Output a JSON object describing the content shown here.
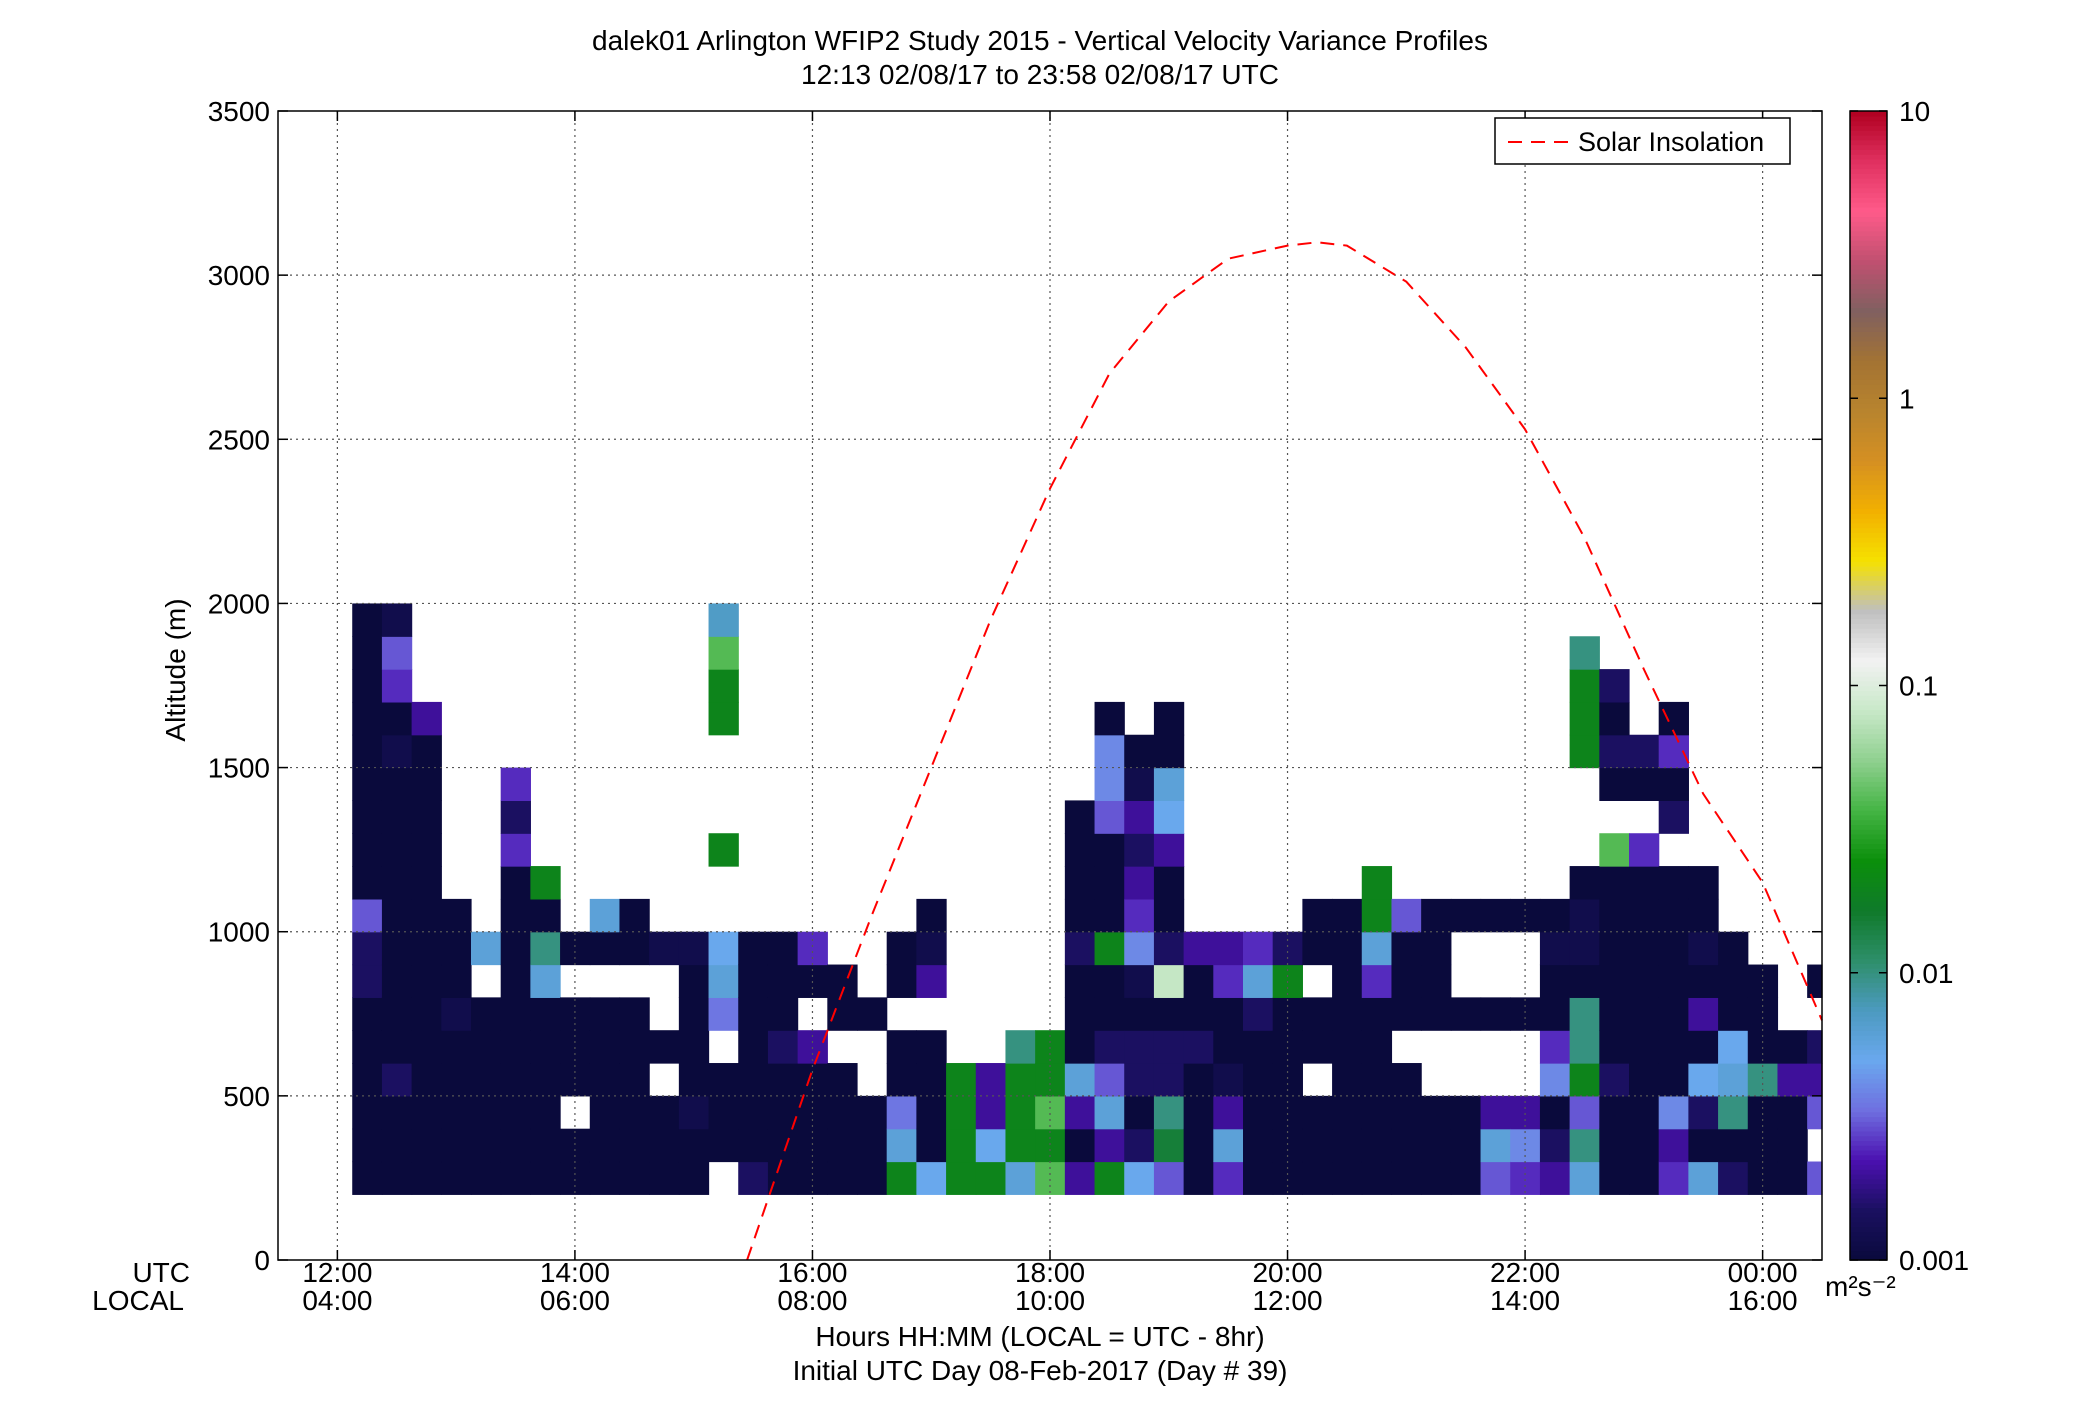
{
  "chart_data": {
    "type": "heatmap",
    "title": "dalek01 Arlington WFIP2 Study 2015 - Vertical Velocity Variance Profiles",
    "subtitle": "12:13 02/08/17 to 23:58 02/08/17  UTC",
    "ylabel": "Altitude (m)",
    "xlabel": "Hours HH:MM  (LOCAL = UTC - 8hr)",
    "xlabel2": "Initial UTC Day 08-Feb-2017 (Day # 39)",
    "row_label_utc": "UTC",
    "row_label_local": "LOCAL",
    "xlim": [
      11.5,
      24.5
    ],
    "ylim": [
      0,
      3500
    ],
    "grid": true,
    "x_ticks_utc": [
      {
        "x": 12,
        "label": "12:00"
      },
      {
        "x": 14,
        "label": "14:00"
      },
      {
        "x": 16,
        "label": "16:00"
      },
      {
        "x": 18,
        "label": "18:00"
      },
      {
        "x": 20,
        "label": "20:00"
      },
      {
        "x": 22,
        "label": "22:00"
      },
      {
        "x": 24,
        "label": "00:00"
      }
    ],
    "x_ticks_local": [
      "04:00",
      "06:00",
      "08:00",
      "10:00",
      "12:00",
      "14:00",
      "16:00"
    ],
    "y_ticks": [
      {
        "y": 0,
        "label": "0"
      },
      {
        "y": 500,
        "label": "500"
      },
      {
        "y": 1000,
        "label": "1000"
      },
      {
        "y": 1500,
        "label": "1500"
      },
      {
        "y": 2000,
        "label": "2000"
      },
      {
        "y": 2500,
        "label": "2500"
      },
      {
        "y": 3000,
        "label": "3000"
      },
      {
        "y": 3500,
        "label": "3500"
      }
    ],
    "legend": {
      "label": "Solar Insolation",
      "color": "#ff0000",
      "position": "top-right"
    },
    "solar_insolation": {
      "x": [
        15.45,
        16.0,
        16.5,
        17.0,
        17.5,
        18.0,
        18.5,
        19.0,
        19.5,
        20.0,
        20.25,
        20.5,
        21.0,
        21.5,
        22.0,
        22.5,
        23.0,
        23.5,
        24.0,
        24.5
      ],
      "y": [
        0,
        580,
        1050,
        1500,
        1950,
        2350,
        2700,
        2920,
        3050,
        3090,
        3100,
        3090,
        2980,
        2780,
        2530,
        2200,
        1800,
        1420,
        1150,
        730
      ]
    },
    "colorbar": {
      "scale": "log",
      "range": [
        0.001,
        10
      ],
      "tick_labels": [
        "10",
        "1",
        "0.1",
        "0.01",
        "0.001"
      ],
      "unit": "m²s⁻²",
      "stops": [
        "#0a0a3c",
        "#1a1060",
        "#4b10b0",
        "#6f6fe0",
        "#6aa8ee",
        "#4c9ac0",
        "#2e8f6a",
        "#0f7a2a",
        "#0b8f0b",
        "#44b444",
        "#8fd08f",
        "#c8e8c8",
        "#f2f2f2",
        "#bfbfbf",
        "#f5e100",
        "#f2b000",
        "#d59022",
        "#b8842e",
        "#a37333",
        "#806060",
        "#c05070",
        "#ff5b8a",
        "#e03060",
        "#b00020"
      ]
    },
    "bin_width_hours": 0.25,
    "bin_height_m": 100,
    "columns": [
      {
        "x": 12.25,
        "bottom": 200,
        "values": [
          0.001,
          0.001,
          0.001,
          0.001,
          0.001,
          0.001,
          0.0015,
          0.0015,
          0.003,
          0.001,
          0.001,
          0.001,
          0.001,
          0.001,
          0.001,
          0.001,
          0.001,
          0.001
        ]
      },
      {
        "x": 12.5,
        "bottom": 200,
        "values": [
          0.001,
          0.001,
          0.001,
          0.0015,
          0.001,
          0.001,
          0.001,
          0.001,
          0.001,
          0.001,
          0.001,
          0.001,
          0.001,
          0.0012,
          0.001,
          0.0025,
          0.003,
          0.0012
        ]
      },
      {
        "x": 12.75,
        "bottom": 200,
        "values": [
          0.001,
          0.001,
          0.001,
          0.001,
          0.001,
          0.001,
          0.001,
          0.001,
          0.001,
          0.001,
          0.001,
          0.001,
          0.001,
          0.001,
          0.002
        ]
      },
      {
        "x": 13.0,
        "bottom": 200,
        "values": [
          0.001,
          0.001,
          0.001,
          0.001,
          0.001,
          0.0012,
          0.001,
          0.001,
          0.001
        ]
      },
      {
        "x": 13.25,
        "bottom": 200,
        "values": [
          0.001,
          0.001,
          0.001,
          0.001,
          0.001,
          0.001,
          null,
          0.006
        ]
      },
      {
        "x": 13.5,
        "bottom": 200,
        "values": [
          0.001,
          0.001,
          0.001,
          0.001,
          0.001,
          0.001,
          0.001,
          0.001,
          0.001,
          0.001,
          0.0025,
          0.0015,
          0.0025
        ]
      },
      {
        "x": 13.75,
        "bottom": 200,
        "values": [
          0.001,
          0.001,
          0.001,
          0.001,
          0.001,
          0.001,
          0.006,
          0.01,
          0.001,
          0.02
        ]
      },
      {
        "x": 14.0,
        "bottom": 200,
        "values": [
          0.001,
          0.001,
          null,
          0.001,
          0.001,
          0.001,
          null,
          0.001
        ]
      },
      {
        "x": 14.25,
        "bottom": 200,
        "values": [
          0.001,
          0.001,
          0.001,
          0.001,
          0.001,
          0.001,
          null,
          0.001,
          0.006
        ]
      },
      {
        "x": 14.5,
        "bottom": 200,
        "values": [
          0.001,
          0.001,
          0.001,
          0.001,
          0.001,
          0.001,
          null,
          0.001,
          0.001
        ]
      },
      {
        "x": 14.75,
        "bottom": 200,
        "values": [
          0.001,
          0.001,
          0.001,
          null,
          0.001,
          null,
          null,
          0.0012
        ]
      },
      {
        "x": 15.0,
        "bottom": 200,
        "values": [
          0.001,
          0.001,
          0.0012,
          0.001,
          0.001,
          0.001,
          0.001,
          0.0012
        ]
      },
      {
        "x": 15.25,
        "bottom": 200,
        "values": [
          null,
          0.001,
          0.001,
          0.001,
          null,
          0.0035,
          0.006,
          0.005,
          null,
          null,
          0.02,
          null,
          null,
          null,
          0.02,
          0.02,
          0.04,
          0.007
        ]
      },
      {
        "x": 15.5,
        "bottom": 200,
        "values": [
          0.0015,
          0.001,
          0.001,
          0.001,
          0.001,
          0.001,
          0.001,
          0.001
        ]
      },
      {
        "x": 15.75,
        "bottom": 200,
        "values": [
          0.001,
          0.001,
          0.001,
          0.001,
          0.0015,
          0.001,
          0.001,
          0.001
        ]
      },
      {
        "x": 16.0,
        "bottom": 200,
        "values": [
          0.001,
          0.001,
          0.001,
          0.001,
          0.002,
          null,
          0.001,
          0.0025
        ]
      },
      {
        "x": 16.25,
        "bottom": 200,
        "values": [
          0.001,
          0.001,
          0.001,
          0.001,
          null,
          0.001,
          0.001
        ]
      },
      {
        "x": 16.5,
        "bottom": 200,
        "values": [
          0.001,
          0.001,
          0.001,
          null,
          null,
          0.001
        ]
      },
      {
        "x": 16.75,
        "bottom": 200,
        "values": [
          0.02,
          0.006,
          0.0035,
          0.001,
          0.001,
          null,
          0.001,
          0.001
        ]
      },
      {
        "x": 17.0,
        "bottom": 200,
        "values": [
          0.005,
          0.001,
          0.001,
          0.001,
          0.001,
          null,
          0.002,
          0.0012,
          0.001
        ]
      },
      {
        "x": 17.25,
        "bottom": 200,
        "values": [
          0.02,
          0.02,
          0.02,
          0.02
        ]
      },
      {
        "x": 17.5,
        "bottom": 200,
        "values": [
          0.02,
          0.005,
          0.002,
          0.002
        ]
      },
      {
        "x": 17.75,
        "bottom": 200,
        "values": [
          0.006,
          0.02,
          0.02,
          0.02,
          0.01
        ]
      },
      {
        "x": 18.0,
        "bottom": 200,
        "values": [
          0.04,
          0.02,
          0.04,
          0.02,
          0.02
        ]
      },
      {
        "x": 18.25,
        "bottom": 200,
        "values": [
          0.002,
          0.001,
          0.002,
          0.006,
          0.001,
          0.001,
          0.001,
          0.0015,
          0.001,
          0.001,
          0.001,
          0.001
        ]
      },
      {
        "x": 18.5,
        "bottom": 200,
        "values": [
          0.02,
          0.002,
          0.006,
          0.003,
          0.0015,
          0.001,
          0.001,
          0.02,
          0.001,
          0.001,
          0.001,
          0.003,
          0.004,
          0.004,
          0.001
        ]
      },
      {
        "x": 18.75,
        "bottom": 200,
        "values": [
          0.005,
          0.0015,
          0.001,
          0.0015,
          0.0015,
          0.001,
          0.0012,
          0.004,
          0.0025,
          0.002,
          0.0015,
          0.002,
          0.0012,
          0.001
        ]
      },
      {
        "x": 19.0,
        "bottom": 200,
        "values": [
          0.003,
          0.015,
          0.01,
          0.0015,
          0.0015,
          0.001,
          0.08,
          0.0015,
          0.001,
          0.001,
          0.002,
          0.005,
          0.006,
          0.001,
          0.001
        ]
      },
      {
        "x": 19.25,
        "bottom": 200,
        "values": [
          0.001,
          0.001,
          0.001,
          0.001,
          0.0015,
          0.001,
          0.001,
          0.002
        ]
      },
      {
        "x": 19.5,
        "bottom": 200,
        "values": [
          0.0025,
          0.006,
          0.002,
          0.0012,
          0.001,
          0.001,
          0.0025,
          0.002
        ]
      },
      {
        "x": 19.75,
        "bottom": 200,
        "values": [
          0.001,
          0.001,
          0.001,
          0.001,
          0.001,
          0.0015,
          0.006,
          0.0025
        ]
      },
      {
        "x": 20.0,
        "bottom": 200,
        "values": [
          0.001,
          0.001,
          0.001,
          0.001,
          0.001,
          0.001,
          0.02,
          0.0015
        ]
      },
      {
        "x": 20.25,
        "bottom": 200,
        "values": [
          0.001,
          0.001,
          0.001,
          null,
          0.001,
          0.001,
          null,
          0.001,
          0.001
        ]
      },
      {
        "x": 20.5,
        "bottom": 200,
        "values": [
          0.001,
          0.001,
          0.001,
          0.001,
          0.001,
          0.001,
          0.001,
          0.001,
          0.001
        ]
      },
      {
        "x": 20.75,
        "bottom": 200,
        "values": [
          0.001,
          0.001,
          0.001,
          0.001,
          0.001,
          0.001,
          0.0025,
          0.006,
          0.02,
          0.02
        ]
      },
      {
        "x": 21.0,
        "bottom": 200,
        "values": [
          0.001,
          0.001,
          0.001,
          0.001,
          null,
          0.001,
          0.001,
          0.001,
          0.003
        ]
      },
      {
        "x": 21.25,
        "bottom": 200,
        "values": [
          0.001,
          0.001,
          0.001,
          null,
          null,
          0.001,
          0.001,
          0.001,
          0.001
        ]
      },
      {
        "x": 21.5,
        "bottom": 200,
        "values": [
          0.001,
          0.001,
          0.001,
          null,
          null,
          0.001,
          null,
          null,
          0.001
        ]
      },
      {
        "x": 21.75,
        "bottom": 200,
        "values": [
          0.003,
          0.006,
          0.002,
          null,
          null,
          0.001,
          null,
          null,
          0.001
        ]
      },
      {
        "x": 22.0,
        "bottom": 200,
        "values": [
          0.0025,
          0.004,
          0.002,
          null,
          null,
          0.001,
          null,
          null,
          0.001
        ]
      },
      {
        "x": 22.25,
        "bottom": 200,
        "values": [
          0.002,
          0.0015,
          0.001,
          0.004,
          0.0025,
          0.001,
          0.001,
          0.0012,
          0.001
        ]
      },
      {
        "x": 22.5,
        "bottom": 200,
        "values": [
          0.006,
          0.01,
          0.003,
          0.02,
          0.01,
          0.01,
          0.001,
          0.0012,
          0.0012,
          0.001,
          null,
          null,
          null,
          0.02,
          0.02,
          0.02,
          0.01
        ]
      },
      {
        "x": 22.75,
        "bottom": 200,
        "values": [
          0.001,
          0.001,
          0.001,
          0.0015,
          0.001,
          0.001,
          0.001,
          0.001,
          0.001,
          0.001,
          0.04,
          null,
          0.001,
          0.0015,
          0.001,
          0.0015
        ]
      },
      {
        "x": 23.0,
        "bottom": 200,
        "values": [
          0.001,
          0.001,
          0.001,
          0.001,
          0.001,
          0.001,
          0.001,
          0.001,
          0.001,
          0.001,
          0.0025,
          null,
          0.001,
          0.0015
        ]
      },
      {
        "x": 23.25,
        "bottom": 200,
        "values": [
          0.0025,
          0.002,
          0.004,
          0.001,
          0.001,
          0.001,
          0.001,
          0.001,
          0.001,
          0.001,
          null,
          0.0015,
          0.001,
          0.0025,
          0.001
        ]
      },
      {
        "x": 23.5,
        "bottom": 200,
        "values": [
          0.006,
          0.001,
          0.0015,
          0.005,
          0.001,
          0.002,
          0.001,
          0.0012,
          0.001,
          0.001
        ]
      },
      {
        "x": 23.75,
        "bottom": 200,
        "values": [
          0.0015,
          0.001,
          0.01,
          0.006,
          0.005,
          0.001,
          0.001,
          0.001
        ]
      },
      {
        "x": 24.0,
        "bottom": 200,
        "values": [
          0.001,
          0.001,
          0.001,
          0.01,
          0.001,
          0.001,
          0.001
        ]
      },
      {
        "x": 24.25,
        "bottom": 200,
        "values": [
          0.001,
          0.001,
          0.001,
          0.002,
          0.001,
          null
        ]
      },
      {
        "x": 24.5,
        "bottom": 200,
        "values": [
          0.003,
          null,
          0.003,
          0.002,
          0.0015,
          null,
          0.001
        ]
      }
    ]
  }
}
